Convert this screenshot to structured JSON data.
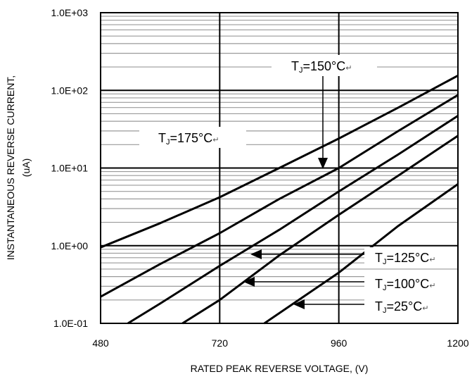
{
  "chart_data": {
    "type": "line",
    "title": "",
    "xlabel": "RATED PEAK REVERSE VOLTAGE, (V)",
    "ylabel_line1": "INSTANTANEOUS REVERSE CURRENT,",
    "ylabel_line2": "(uA)",
    "xlim": [
      480,
      1200
    ],
    "ylim": [
      0.1,
      1000
    ],
    "yscale": "log",
    "grid": true,
    "x_ticks": [
      480,
      720,
      960,
      1200
    ],
    "x_tick_labels": [
      "480",
      "720",
      "960",
      "1200"
    ],
    "y_ticks": [
      0.1,
      1,
      10,
      100,
      1000
    ],
    "y_tick_labels": [
      "1.0E-01",
      "1.0E+00",
      "1.0E+01",
      "1.0E+02",
      "1.0E+03"
    ],
    "series": [
      {
        "name": "TJ=175°C",
        "x": [
          480,
          600,
          720,
          840,
          960,
          1080,
          1200
        ],
        "y": [
          0.95,
          1.95,
          4.2,
          10.0,
          24.0,
          60.0,
          155.0
        ]
      },
      {
        "name": "TJ=150°C",
        "x": [
          480,
          600,
          720,
          840,
          960,
          1080,
          1200
        ],
        "y": [
          0.22,
          0.58,
          1.45,
          4.0,
          10.0,
          30.0,
          87.0
        ]
      },
      {
        "name": "TJ=125°C",
        "x": [
          535,
          600,
          720,
          840,
          960,
          1080,
          1200
        ],
        "y": [
          0.1,
          0.18,
          0.55,
          1.6,
          5.0,
          15.0,
          47.0
        ]
      },
      {
        "name": "TJ=100°C",
        "x": [
          645,
          720,
          840,
          960,
          1080,
          1200
        ],
        "y": [
          0.1,
          0.2,
          0.75,
          2.5,
          8.0,
          26.0
        ]
      },
      {
        "name": "TJ=25°C",
        "x": [
          810,
          960,
          1080,
          1200
        ],
        "y": [
          0.1,
          0.45,
          1.8,
          6.2
        ]
      }
    ],
    "annotations": [
      {
        "main": "T",
        "sub": "J",
        "rest": "=150°C",
        "ret": "↵"
      },
      {
        "main": "T",
        "sub": "J",
        "rest": "=175°C",
        "ret": "↵"
      },
      {
        "main": "T",
        "sub": "J",
        "rest": "=125°C",
        "ret": "↵"
      },
      {
        "main": "T",
        "sub": "J",
        "rest": "=100°C",
        "ret": "↵"
      },
      {
        "main": "T",
        "sub": "J",
        "rest": "=25°C",
        "ret": "↵"
      }
    ]
  }
}
